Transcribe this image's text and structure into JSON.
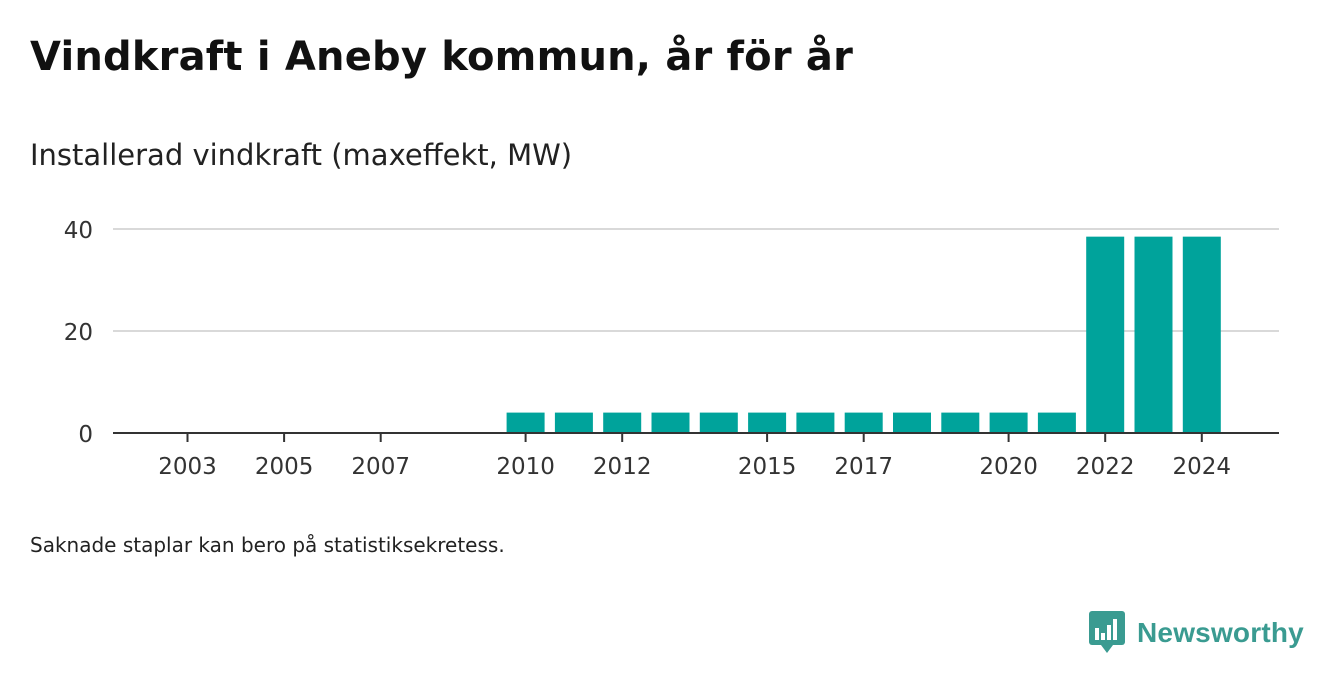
{
  "header": {
    "title": "Vindkraft i Aneby kommun, år för år",
    "subtitle": "Installerad vindkraft (maxeffekt, MW)"
  },
  "footer": {
    "note": "Saknade staplar kan bero på statistiksekretess.",
    "brand": "Newsworthy"
  },
  "colors": {
    "bar": "#00a39b",
    "grid": "#d9d9d9",
    "axis": "#333333",
    "brand": "#3a9b91"
  },
  "chart_data": {
    "type": "bar",
    "categories": [
      "2003",
      "2004",
      "2005",
      "2006",
      "2007",
      "2008",
      "2009",
      "2010",
      "2011",
      "2012",
      "2013",
      "2014",
      "2015",
      "2016",
      "2017",
      "2018",
      "2019",
      "2020",
      "2021",
      "2022",
      "2023",
      "2024"
    ],
    "values": [
      0,
      0,
      0,
      0,
      0,
      0,
      0,
      4,
      4,
      4,
      4,
      4,
      4,
      4,
      4,
      4,
      4,
      4,
      4,
      38.5,
      38.5,
      38.5
    ],
    "tick_labels": [
      "2003",
      "2005",
      "2007",
      "2010",
      "2012",
      "2015",
      "2017",
      "2020",
      "2022",
      "2024"
    ],
    "y_ticks": [
      0,
      20,
      40
    ],
    "ylim": [
      0,
      40
    ],
    "grid": true,
    "title": "Vindkraft i Aneby kommun, år för år",
    "ylabel": "Installerad vindkraft (maxeffekt, MW)",
    "xlabel": ""
  }
}
